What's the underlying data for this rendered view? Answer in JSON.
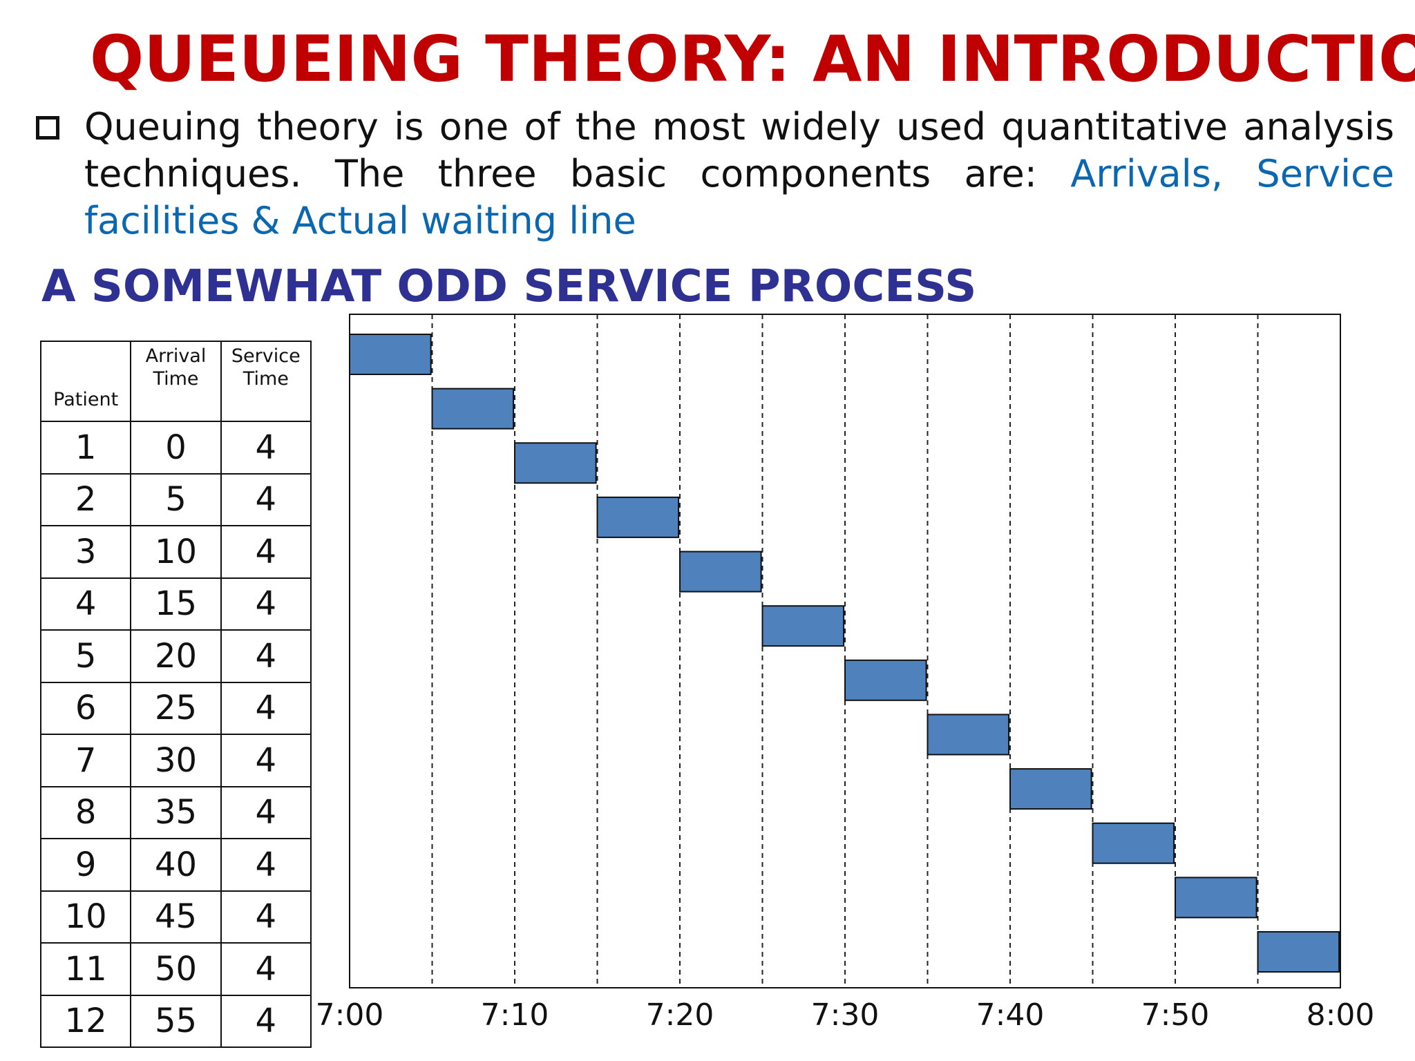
{
  "title": "QUEUEING THEORY: AN INTRODUCTION",
  "intro": {
    "text": "Queuing theory is one of the most widely used quantitative analysis techniques. The three basic components are: ",
    "highlight": "Arrivals, Service facilities & Actual waiting line",
    "highlight_color": "#0a67b0"
  },
  "subtitle": "A SOMEWHAT ODD SERVICE PROCESS",
  "table": {
    "headers": {
      "patient": "Patient",
      "arrival": "Arrival Time",
      "service": "Service Time"
    },
    "rows": [
      [
        "1",
        "0",
        "4"
      ],
      [
        "2",
        "5",
        "4"
      ],
      [
        "3",
        "10",
        "4"
      ],
      [
        "4",
        "15",
        "4"
      ],
      [
        "5",
        "20",
        "4"
      ],
      [
        "6",
        "25",
        "4"
      ],
      [
        "7",
        "30",
        "4"
      ],
      [
        "8",
        "35",
        "4"
      ],
      [
        "9",
        "40",
        "4"
      ],
      [
        "10",
        "45",
        "4"
      ],
      [
        "11",
        "50",
        "4"
      ],
      [
        "12",
        "55",
        "4"
      ]
    ]
  },
  "chart_data": {
    "type": "bar",
    "orientation": "gantt",
    "x_tick_labels": [
      "7:00",
      "7:10",
      "7:20",
      "7:30",
      "7:40",
      "7:50",
      "8:00"
    ],
    "x_ticks": [
      0,
      10,
      20,
      30,
      40,
      50,
      60
    ],
    "xlim": [
      0,
      60
    ],
    "dashed_gridlines_at": [
      5,
      10,
      15,
      20,
      25,
      30,
      35,
      40,
      45,
      50,
      55
    ],
    "tasks": [
      {
        "patient": 1,
        "start": 0,
        "duration": 4
      },
      {
        "patient": 2,
        "start": 5,
        "duration": 4
      },
      {
        "patient": 3,
        "start": 10,
        "duration": 4
      },
      {
        "patient": 4,
        "start": 15,
        "duration": 4
      },
      {
        "patient": 5,
        "start": 20,
        "duration": 4
      },
      {
        "patient": 6,
        "start": 25,
        "duration": 4
      },
      {
        "patient": 7,
        "start": 30,
        "duration": 4
      },
      {
        "patient": 8,
        "start": 35,
        "duration": 4
      },
      {
        "patient": 9,
        "start": 40,
        "duration": 4
      },
      {
        "patient": 10,
        "start": 45,
        "duration": 4
      },
      {
        "patient": 11,
        "start": 50,
        "duration": 4
      },
      {
        "patient": 12,
        "start": 55,
        "duration": 4
      }
    ],
    "bar_color": "#4f81bd"
  }
}
